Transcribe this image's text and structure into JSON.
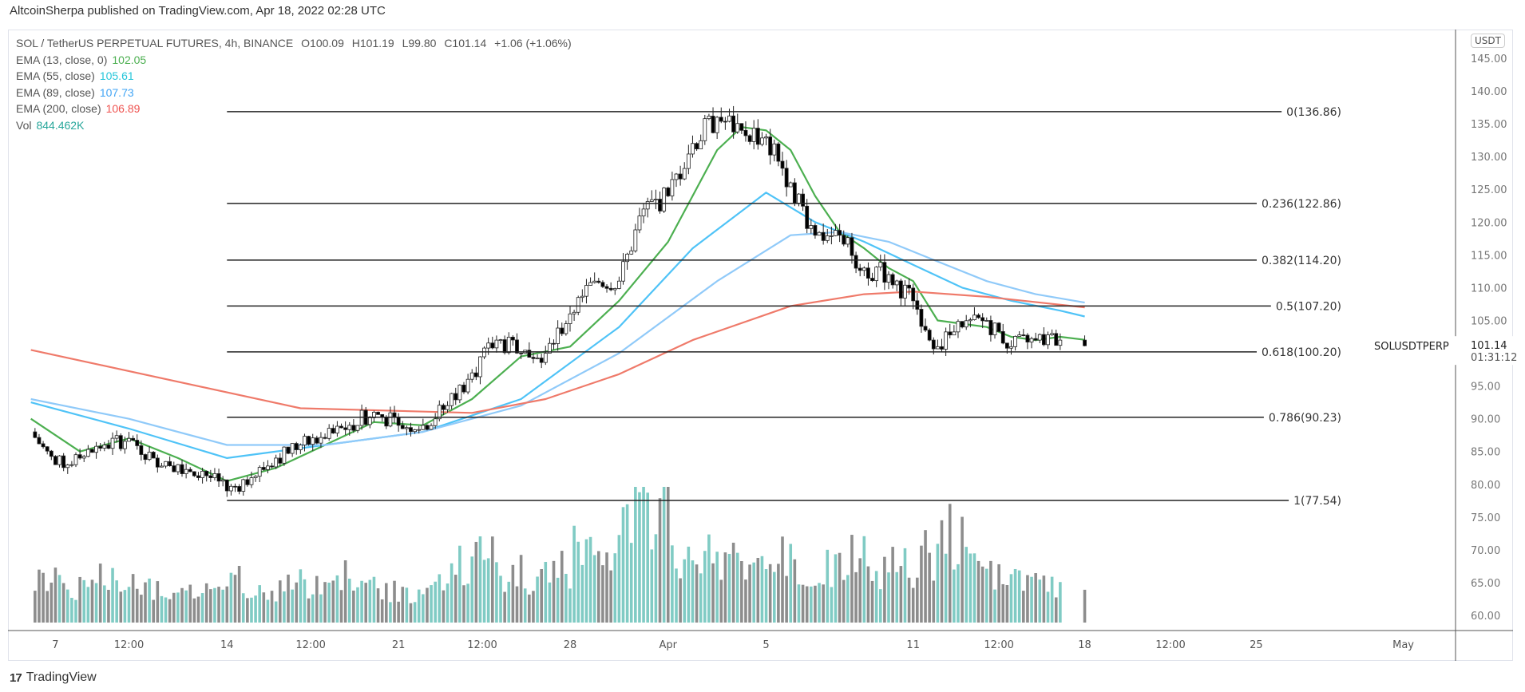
{
  "header": {
    "published": "AltcoinSherpa published on TradingView.com, Apr 18, 2022 02:28 UTC"
  },
  "legend": {
    "symbol": "SOL / TetherUS PERPETUAL FUTURES, 4h, BINANCE",
    "ohlc": {
      "open": "O100.09",
      "high": "H101.19",
      "low": "L99.80",
      "close": "C101.14",
      "change": "+1.06 (+1.06%)"
    },
    "indicators": [
      {
        "label": "EMA (13, close, 0)",
        "value": "102.05",
        "color": "#4caf50"
      },
      {
        "label": "EMA (55, close)",
        "value": "105.61",
        "color": "#26c6da"
      },
      {
        "label": "EMA (89, close)",
        "value": "107.73",
        "color": "#42a5f5"
      },
      {
        "label": "EMA (200, close)",
        "value": "106.89",
        "color": "#ef5350"
      },
      {
        "label": "Vol",
        "value": "844.462K",
        "color": "#26a69a"
      }
    ]
  },
  "price_axis": {
    "currency": "USDT",
    "ticks": [
      "145.00",
      "140.00",
      "135.00",
      "130.00",
      "125.00",
      "120.00",
      "115.00",
      "110.00",
      "105.00",
      "95.00",
      "90.00",
      "85.00",
      "80.00",
      "75.00",
      "70.00",
      "65.00",
      "60.00"
    ],
    "symbol_label": "SOLUSDTPERP",
    "last_price": "101.14",
    "countdown": "01:31:12"
  },
  "footer": {
    "brand": "TradingView"
  },
  "chart_data": {
    "type": "candlestick",
    "ylim": [
      57,
      147
    ],
    "start_date": "2022-03-06",
    "daily_closes": [
      88,
      83,
      84,
      86,
      87,
      84,
      83,
      82,
      79,
      81,
      84,
      86,
      87,
      89,
      91,
      89,
      89,
      92,
      97,
      102,
      100,
      100,
      106,
      111,
      111,
      122,
      124,
      132,
      136,
      134,
      133,
      126,
      118,
      118,
      113,
      112,
      108,
      101,
      104,
      105,
      101,
      102,
      102,
      101.14
    ],
    "volume_relative": [
      30,
      35,
      30,
      40,
      35,
      30,
      28,
      25,
      30,
      35,
      30,
      35,
      30,
      40,
      35,
      30,
      28,
      35,
      55,
      60,
      45,
      40,
      50,
      60,
      70,
      100,
      95,
      65,
      55,
      50,
      45,
      55,
      40,
      45,
      55,
      45,
      50,
      60,
      75,
      50,
      40,
      35,
      30,
      35
    ],
    "x_ticks": [
      {
        "label": "7",
        "date": "2022-03-07"
      },
      {
        "label": "12:00",
        "date": "2022-03-10"
      },
      {
        "label": "14",
        "date": "2022-03-14"
      },
      {
        "label": "12:00",
        "date": "2022-03-17T10:00"
      },
      {
        "label": "21",
        "date": "2022-03-21"
      },
      {
        "label": "12:00",
        "date": "2022-03-24T10:00"
      },
      {
        "label": "28",
        "date": "2022-03-28"
      },
      {
        "label": "Apr",
        "date": "2022-04-01"
      },
      {
        "label": "5",
        "date": "2022-04-05"
      },
      {
        "label": "11",
        "date": "2022-04-11"
      },
      {
        "label": "12:00",
        "date": "2022-04-14T12:00"
      },
      {
        "label": "18",
        "date": "2022-04-18"
      },
      {
        "label": "12:00",
        "date": "2022-04-21T12:00"
      },
      {
        "label": "25",
        "date": "2022-04-25"
      },
      {
        "label": "May",
        "date": "2022-05-01"
      }
    ],
    "ema": [
      {
        "name": "EMA (13, close, 0)",
        "color": "#4caf50",
        "points": [
          [
            "2022-03-06",
            90
          ],
          [
            "2022-03-08",
            85
          ],
          [
            "2022-03-10",
            87
          ],
          [
            "2022-03-12",
            84
          ],
          [
            "2022-03-14",
            80.5
          ],
          [
            "2022-03-16",
            82.5
          ],
          [
            "2022-03-18",
            86
          ],
          [
            "2022-03-20",
            89.5
          ],
          [
            "2022-03-22",
            89
          ],
          [
            "2022-03-24",
            93
          ],
          [
            "2022-03-26",
            99.5
          ],
          [
            "2022-03-28",
            101
          ],
          [
            "2022-03-30",
            108
          ],
          [
            "2022-04-01",
            117
          ],
          [
            "2022-04-03",
            131
          ],
          [
            "2022-04-04",
            134.5
          ],
          [
            "2022-04-05",
            134
          ],
          [
            "2022-04-06",
            131
          ],
          [
            "2022-04-07",
            124
          ],
          [
            "2022-04-08",
            118.5
          ],
          [
            "2022-04-09",
            116
          ],
          [
            "2022-04-10",
            113
          ],
          [
            "2022-04-11",
            111
          ],
          [
            "2022-04-12",
            105
          ],
          [
            "2022-04-13",
            104.5
          ],
          [
            "2022-04-14",
            104
          ],
          [
            "2022-04-15",
            102.5
          ],
          [
            "2022-04-16",
            102
          ],
          [
            "2022-04-17",
            102.5
          ],
          [
            "2022-04-18",
            102.05
          ]
        ]
      },
      {
        "name": "EMA (55, close)",
        "color": "#4fc3f7",
        "points": [
          [
            "2022-03-06",
            92.5
          ],
          [
            "2022-03-10",
            88.5
          ],
          [
            "2022-03-14",
            84
          ],
          [
            "2022-03-18",
            86
          ],
          [
            "2022-03-22",
            88
          ],
          [
            "2022-03-26",
            93
          ],
          [
            "2022-03-30",
            104
          ],
          [
            "2022-04-02",
            116
          ],
          [
            "2022-04-05",
            124.5
          ],
          [
            "2022-04-07",
            120
          ],
          [
            "2022-04-09",
            117
          ],
          [
            "2022-04-11",
            113.5
          ],
          [
            "2022-04-13",
            110
          ],
          [
            "2022-04-15",
            108
          ],
          [
            "2022-04-17",
            106.5
          ],
          [
            "2022-04-18",
            105.61
          ]
        ]
      },
      {
        "name": "EMA (89, close)",
        "color": "#90caf9",
        "points": [
          [
            "2022-03-06",
            93
          ],
          [
            "2022-03-10",
            90
          ],
          [
            "2022-03-14",
            86
          ],
          [
            "2022-03-18",
            86
          ],
          [
            "2022-03-22",
            88
          ],
          [
            "2022-03-26",
            92
          ],
          [
            "2022-03-30",
            100
          ],
          [
            "2022-04-03",
            111
          ],
          [
            "2022-04-06",
            118
          ],
          [
            "2022-04-08",
            118.5
          ],
          [
            "2022-04-10",
            117
          ],
          [
            "2022-04-12",
            114
          ],
          [
            "2022-04-14",
            111
          ],
          [
            "2022-04-16",
            109
          ],
          [
            "2022-04-18",
            107.73
          ]
        ]
      },
      {
        "name": "EMA (200, close)",
        "color": "#ef7a6a",
        "points": [
          [
            "2022-03-06",
            100.5
          ],
          [
            "2022-03-17",
            91.6
          ],
          [
            "2022-03-24",
            90.9
          ],
          [
            "2022-03-27",
            93
          ],
          [
            "2022-03-30",
            96.8
          ],
          [
            "2022-04-02",
            102
          ],
          [
            "2022-04-06",
            107.2
          ],
          [
            "2022-04-09",
            109
          ],
          [
            "2022-04-11",
            109.4
          ],
          [
            "2022-04-14",
            108.6
          ],
          [
            "2022-04-18",
            107
          ]
        ]
      }
    ],
    "fib_levels": [
      {
        "label": "0(136.86)",
        "value": 136.86
      },
      {
        "label": "0.236(122.86)",
        "value": 122.86
      },
      {
        "label": "0.382(114.20)",
        "value": 114.2
      },
      {
        "label": "0.5(107.20)",
        "value": 107.2
      },
      {
        "label": "0.618(100.20)",
        "value": 100.2
      },
      {
        "label": "0.786(90.23)",
        "value": 90.23
      },
      {
        "label": "1(77.54)",
        "value": 77.54
      }
    ],
    "fib_start_date": "2022-03-14",
    "colors": {
      "up_body": "#ffffff",
      "down_body": "#000000",
      "vol_up": "#80cbc4",
      "vol_down": "#8d8d8d"
    }
  }
}
